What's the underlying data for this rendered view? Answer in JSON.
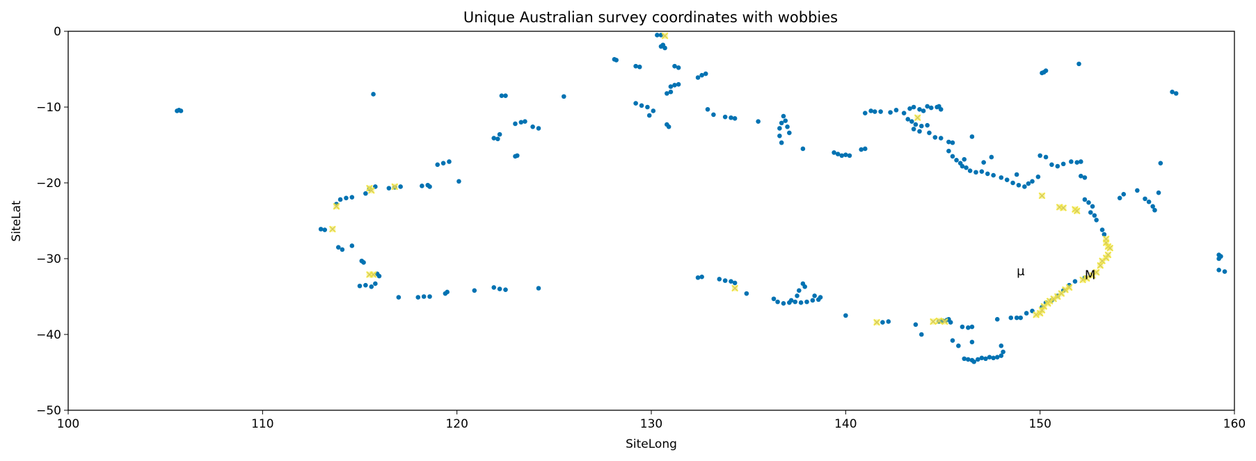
{
  "chart_data": {
    "type": "scatter",
    "title": "Unique Australian survey coordinates with wobbies",
    "xlabel": "SiteLong",
    "ylabel": "SiteLat",
    "xlim": [
      100,
      160
    ],
    "ylim": [
      -50,
      0
    ],
    "xticks": [
      100,
      110,
      120,
      130,
      140,
      150,
      160
    ],
    "yticks": [
      0,
      -10,
      -20,
      -30,
      -40,
      -50
    ],
    "xtick_labels": [
      "100",
      "110",
      "120",
      "130",
      "140",
      "150",
      "160"
    ],
    "ytick_labels": [
      "0",
      "−10",
      "−20",
      "−30",
      "−40",
      "−50"
    ],
    "grid": false,
    "colors": {
      "sites": "#0072b2",
      "wobbies": "#f0e442",
      "wobby_edge": "#c9c070"
    },
    "annotations": [
      {
        "text": "μ",
        "x": 148.8,
        "y": -32.2
      },
      {
        "text": "M",
        "x": 152.3,
        "y": -32.7
      }
    ],
    "series": [
      {
        "marker": "circle",
        "color": "#0072b2",
        "points": [
          [
            105.6,
            -10.5
          ],
          [
            105.7,
            -10.4
          ],
          [
            105.8,
            -10.5
          ],
          [
            115.7,
            -8.3
          ],
          [
            125.5,
            -8.6
          ],
          [
            122.3,
            -8.5
          ],
          [
            122.5,
            -8.5
          ],
          [
            128.1,
            -3.7
          ],
          [
            128.2,
            -3.8
          ],
          [
            130.3,
            -0.5
          ],
          [
            130.5,
            -0.5
          ],
          [
            130.5,
            -2.0
          ],
          [
            130.7,
            -2.2
          ],
          [
            130.6,
            -1.8
          ],
          [
            129.2,
            -4.6
          ],
          [
            129.4,
            -4.7
          ],
          [
            131.2,
            -4.6
          ],
          [
            131.4,
            -4.8
          ],
          [
            132.6,
            -5.8
          ],
          [
            132.8,
            -5.6
          ],
          [
            132.4,
            -6.1
          ],
          [
            131.2,
            -7.1
          ],
          [
            131.0,
            -7.3
          ],
          [
            131.4,
            -7.0
          ],
          [
            130.8,
            -8.2
          ],
          [
            131.0,
            -8.0
          ],
          [
            129.2,
            -9.5
          ],
          [
            129.5,
            -9.8
          ],
          [
            129.8,
            -10.0
          ],
          [
            129.9,
            -11.1
          ],
          [
            130.1,
            -10.5
          ],
          [
            130.8,
            -12.3
          ],
          [
            130.9,
            -12.6
          ],
          [
            132.9,
            -10.3
          ],
          [
            133.2,
            -11.0
          ],
          [
            133.8,
            -11.3
          ],
          [
            134.1,
            -11.4
          ],
          [
            134.3,
            -11.5
          ],
          [
            135.5,
            -11.9
          ],
          [
            136.7,
            -12.1
          ],
          [
            136.8,
            -11.2
          ],
          [
            136.9,
            -11.8
          ],
          [
            137.0,
            -12.6
          ],
          [
            137.1,
            -13.4
          ],
          [
            136.6,
            -13.8
          ],
          [
            136.6,
            -12.8
          ],
          [
            136.7,
            -14.7
          ],
          [
            137.8,
            -15.5
          ],
          [
            139.4,
            -16.0
          ],
          [
            139.6,
            -16.2
          ],
          [
            139.8,
            -16.4
          ],
          [
            140.0,
            -16.3
          ],
          [
            140.2,
            -16.4
          ],
          [
            140.8,
            -15.6
          ],
          [
            141.0,
            -15.5
          ],
          [
            141.0,
            -10.8
          ],
          [
            141.3,
            -10.5
          ],
          [
            141.5,
            -10.6
          ],
          [
            141.8,
            -10.6
          ],
          [
            142.3,
            -10.7
          ],
          [
            142.6,
            -10.4
          ],
          [
            143.0,
            -10.8
          ],
          [
            143.3,
            -10.2
          ],
          [
            143.5,
            -10.0
          ],
          [
            143.8,
            -10.3
          ],
          [
            144.0,
            -10.5
          ],
          [
            144.2,
            -9.9
          ],
          [
            144.4,
            -10.1
          ],
          [
            144.7,
            -10.0
          ],
          [
            144.9,
            -10.3
          ],
          [
            144.8,
            -9.9
          ],
          [
            143.2,
            -11.6
          ],
          [
            143.4,
            -11.9
          ],
          [
            143.6,
            -12.3
          ],
          [
            143.9,
            -12.5
          ],
          [
            143.8,
            -13.2
          ],
          [
            143.5,
            -12.9
          ],
          [
            144.3,
            -13.4
          ],
          [
            144.2,
            -12.4
          ],
          [
            144.6,
            -14.0
          ],
          [
            144.9,
            -14.1
          ],
          [
            145.3,
            -14.6
          ],
          [
            145.5,
            -14.7
          ],
          [
            145.3,
            -15.8
          ],
          [
            145.5,
            -16.5
          ],
          [
            145.7,
            -17.0
          ],
          [
            145.9,
            -17.4
          ],
          [
            146.0,
            -17.8
          ],
          [
            146.2,
            -18.0
          ],
          [
            146.1,
            -16.9
          ],
          [
            146.4,
            -18.4
          ],
          [
            146.7,
            -18.6
          ],
          [
            147.0,
            -18.5
          ],
          [
            147.3,
            -18.8
          ],
          [
            147.6,
            -19.0
          ],
          [
            147.1,
            -17.3
          ],
          [
            147.5,
            -16.6
          ],
          [
            146.5,
            -13.9
          ],
          [
            148.0,
            -19.3
          ],
          [
            148.3,
            -19.6
          ],
          [
            148.6,
            -20.0
          ],
          [
            148.9,
            -20.3
          ],
          [
            149.2,
            -20.5
          ],
          [
            149.4,
            -20.1
          ],
          [
            149.6,
            -19.8
          ],
          [
            149.9,
            -19.2
          ],
          [
            148.8,
            -18.9
          ],
          [
            150.0,
            -16.4
          ],
          [
            150.3,
            -16.6
          ],
          [
            150.6,
            -17.6
          ],
          [
            150.9,
            -17.8
          ],
          [
            151.2,
            -17.5
          ],
          [
            151.6,
            -17.2
          ],
          [
            151.9,
            -17.3
          ],
          [
            152.1,
            -17.2
          ],
          [
            152.1,
            -19.1
          ],
          [
            152.3,
            -19.3
          ],
          [
            152.3,
            -22.2
          ],
          [
            152.5,
            -22.6
          ],
          [
            152.7,
            -23.1
          ],
          [
            152.6,
            -23.9
          ],
          [
            152.8,
            -24.3
          ],
          [
            152.9,
            -24.9
          ],
          [
            154.1,
            -22.0
          ],
          [
            154.3,
            -21.5
          ],
          [
            155.0,
            -21.0
          ],
          [
            155.4,
            -22.1
          ],
          [
            155.6,
            -22.5
          ],
          [
            155.8,
            -23.1
          ],
          [
            155.9,
            -23.6
          ],
          [
            156.1,
            -21.3
          ],
          [
            156.2,
            -17.4
          ],
          [
            156.8,
            -8.0
          ],
          [
            157.0,
            -8.2
          ],
          [
            150.2,
            -5.4
          ],
          [
            150.3,
            -5.2
          ],
          [
            150.1,
            -5.5
          ],
          [
            152.0,
            -4.3
          ],
          [
            159.2,
            -29.5
          ],
          [
            159.2,
            -30.0
          ],
          [
            159.3,
            -29.7
          ],
          [
            159.2,
            -31.5
          ],
          [
            159.5,
            -31.7
          ],
          [
            153.2,
            -26.2
          ],
          [
            153.3,
            -26.8
          ],
          [
            113.0,
            -26.1
          ],
          [
            113.2,
            -26.2
          ],
          [
            113.8,
            -22.8
          ],
          [
            114.0,
            -22.2
          ],
          [
            114.3,
            -22.0
          ],
          [
            114.6,
            -21.9
          ],
          [
            113.9,
            -28.5
          ],
          [
            114.1,
            -28.8
          ],
          [
            114.6,
            -28.3
          ],
          [
            115.1,
            -30.3
          ],
          [
            115.2,
            -30.5
          ],
          [
            115.0,
            -33.6
          ],
          [
            115.3,
            -33.5
          ],
          [
            115.6,
            -33.7
          ],
          [
            115.9,
            -32.0
          ],
          [
            116.0,
            -32.3
          ],
          [
            115.8,
            -33.3
          ],
          [
            115.3,
            -21.4
          ],
          [
            115.5,
            -20.8
          ],
          [
            115.8,
            -20.5
          ],
          [
            116.5,
            -20.7
          ],
          [
            116.8,
            -20.6
          ],
          [
            117.1,
            -20.5
          ],
          [
            118.2,
            -20.4
          ],
          [
            118.5,
            -20.3
          ],
          [
            118.6,
            -20.5
          ],
          [
            119.0,
            -17.6
          ],
          [
            119.3,
            -17.4
          ],
          [
            119.6,
            -17.2
          ],
          [
            120.1,
            -19.8
          ],
          [
            121.9,
            -14.1
          ],
          [
            122.1,
            -14.2
          ],
          [
            122.2,
            -13.6
          ],
          [
            123.0,
            -12.2
          ],
          [
            123.3,
            -12.0
          ],
          [
            123.5,
            -11.9
          ],
          [
            123.9,
            -12.6
          ],
          [
            124.2,
            -12.8
          ],
          [
            123.1,
            -16.4
          ],
          [
            123.0,
            -16.5
          ],
          [
            117.0,
            -35.1
          ],
          [
            118.0,
            -35.1
          ],
          [
            118.3,
            -35.0
          ],
          [
            118.6,
            -35.0
          ],
          [
            119.4,
            -34.6
          ],
          [
            119.5,
            -34.4
          ],
          [
            120.9,
            -34.2
          ],
          [
            121.9,
            -33.8
          ],
          [
            122.2,
            -34.0
          ],
          [
            122.5,
            -34.1
          ],
          [
            124.2,
            -33.9
          ],
          [
            132.4,
            -32.5
          ],
          [
            132.6,
            -32.4
          ],
          [
            133.5,
            -32.7
          ],
          [
            133.8,
            -32.9
          ],
          [
            134.1,
            -33.0
          ],
          [
            134.3,
            -33.2
          ],
          [
            134.9,
            -34.6
          ],
          [
            136.3,
            -35.3
          ],
          [
            136.5,
            -35.7
          ],
          [
            136.8,
            -35.9
          ],
          [
            137.1,
            -35.8
          ],
          [
            137.4,
            -35.7
          ],
          [
            137.7,
            -35.8
          ],
          [
            138.0,
            -35.7
          ],
          [
            138.3,
            -35.5
          ],
          [
            138.6,
            -35.4
          ],
          [
            137.5,
            -34.9
          ],
          [
            137.6,
            -34.2
          ],
          [
            137.8,
            -33.3
          ],
          [
            137.9,
            -33.7
          ],
          [
            138.4,
            -34.9
          ],
          [
            138.7,
            -35.1
          ],
          [
            137.2,
            -35.5
          ],
          [
            140.0,
            -37.5
          ],
          [
            141.9,
            -38.4
          ],
          [
            142.2,
            -38.3
          ],
          [
            143.6,
            -38.7
          ],
          [
            143.9,
            -40.0
          ],
          [
            144.8,
            -38.3
          ],
          [
            145.0,
            -38.2
          ],
          [
            145.2,
            -38.1
          ],
          [
            145.4,
            -38.4
          ],
          [
            145.3,
            -38.0
          ],
          [
            145.5,
            -40.8
          ],
          [
            145.8,
            -41.5
          ],
          [
            146.0,
            -39.0
          ],
          [
            146.3,
            -39.1
          ],
          [
            146.5,
            -39.0
          ],
          [
            146.1,
            -43.2
          ],
          [
            146.3,
            -43.3
          ],
          [
            146.5,
            -43.4
          ],
          [
            146.6,
            -43.6
          ],
          [
            146.8,
            -43.3
          ],
          [
            147.0,
            -43.1
          ],
          [
            147.2,
            -43.2
          ],
          [
            147.4,
            -43.0
          ],
          [
            147.6,
            -43.1
          ],
          [
            147.8,
            -43.0
          ],
          [
            148.0,
            -42.8
          ],
          [
            148.1,
            -42.3
          ],
          [
            148.0,
            -41.5
          ],
          [
            146.5,
            -41.0
          ],
          [
            147.8,
            -38.0
          ],
          [
            148.5,
            -37.8
          ],
          [
            148.8,
            -37.8
          ],
          [
            149.0,
            -37.8
          ],
          [
            149.3,
            -37.2
          ],
          [
            149.6,
            -36.9
          ],
          [
            150.1,
            -36.4
          ],
          [
            150.3,
            -35.8
          ],
          [
            150.6,
            -35.5
          ],
          [
            150.9,
            -34.9
          ],
          [
            151.2,
            -34.2
          ],
          [
            151.5,
            -33.5
          ],
          [
            151.8,
            -33.0
          ],
          [
            152.3,
            -32.5
          ]
        ]
      },
      {
        "marker": "x",
        "color": "#f0e442",
        "points": [
          [
            130.7,
            -0.6
          ],
          [
            143.7,
            -11.4
          ],
          [
            150.1,
            -21.7
          ],
          [
            151.0,
            -23.2
          ],
          [
            151.2,
            -23.3
          ],
          [
            151.8,
            -23.5
          ],
          [
            151.9,
            -23.7
          ],
          [
            113.8,
            -23.1
          ],
          [
            113.6,
            -26.1
          ],
          [
            115.5,
            -20.7
          ],
          [
            115.6,
            -21.0
          ],
          [
            116.8,
            -20.5
          ],
          [
            115.5,
            -32.1
          ],
          [
            115.7,
            -32.1
          ],
          [
            134.3,
            -33.9
          ],
          [
            141.6,
            -38.4
          ],
          [
            144.5,
            -38.3
          ],
          [
            144.8,
            -38.2
          ],
          [
            145.1,
            -38.3
          ],
          [
            149.8,
            -37.4
          ],
          [
            150.0,
            -37.2
          ],
          [
            150.1,
            -36.8
          ],
          [
            150.2,
            -36.3
          ],
          [
            150.4,
            -35.9
          ],
          [
            150.5,
            -35.6
          ],
          [
            150.7,
            -35.3
          ],
          [
            150.9,
            -35.0
          ],
          [
            151.1,
            -34.6
          ],
          [
            151.3,
            -34.1
          ],
          [
            151.5,
            -33.8
          ],
          [
            152.2,
            -32.8
          ],
          [
            152.4,
            -32.6
          ],
          [
            152.7,
            -32.2
          ],
          [
            152.9,
            -31.8
          ],
          [
            153.1,
            -30.9
          ],
          [
            153.2,
            -30.3
          ],
          [
            153.4,
            -29.9
          ],
          [
            153.5,
            -29.5
          ],
          [
            153.5,
            -28.4
          ],
          [
            153.4,
            -27.9
          ],
          [
            153.4,
            -27.4
          ],
          [
            153.6,
            -28.6
          ]
        ]
      }
    ]
  }
}
